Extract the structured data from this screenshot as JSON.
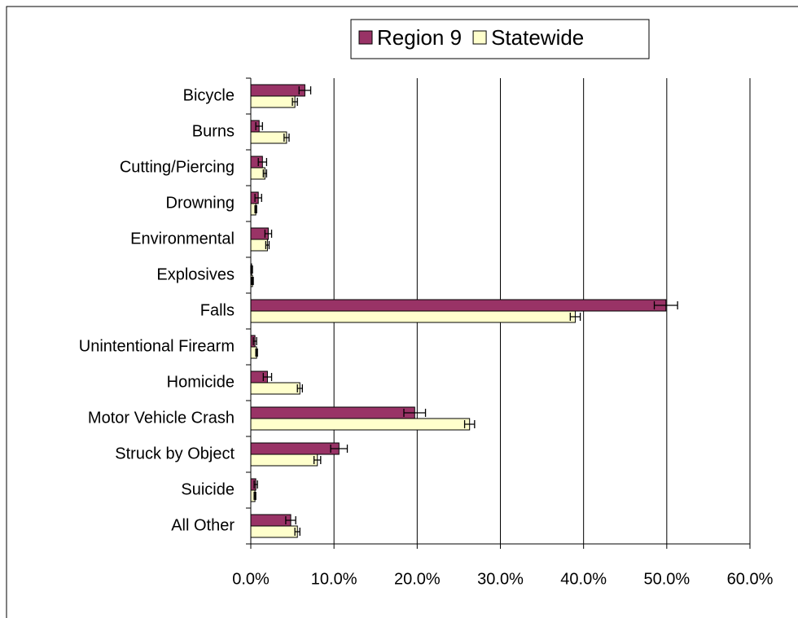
{
  "chart_data": {
    "type": "bar",
    "orientation": "horizontal",
    "categories": [
      "Bicycle",
      "Burns",
      "Cutting/Piercing",
      "Drowning",
      "Environmental",
      "Explosives",
      "Falls",
      "Unintentional Firearm",
      "Homicide",
      "Motor Vehicle Crash",
      "Struck by Object",
      "Suicide",
      "All Other"
    ],
    "series": [
      {
        "name": "Region 9",
        "color": "#993366",
        "values": [
          6.5,
          1.0,
          1.4,
          0.9,
          2.1,
          0.1,
          49.9,
          0.5,
          2.0,
          19.7,
          10.6,
          0.6,
          4.8
        ],
        "errors": [
          0.7,
          0.4,
          0.5,
          0.4,
          0.4,
          0.1,
          1.4,
          0.2,
          0.5,
          1.3,
          1.0,
          0.2,
          0.6
        ]
      },
      {
        "name": "Statewide",
        "color": "#ffffcc",
        "values": [
          5.3,
          4.3,
          1.7,
          0.6,
          2.0,
          0.2,
          39.0,
          0.7,
          5.9,
          26.3,
          8.0,
          0.5,
          5.6
        ],
        "errors": [
          0.3,
          0.3,
          0.2,
          0.1,
          0.2,
          0.1,
          0.6,
          0.1,
          0.3,
          0.6,
          0.4,
          0.1,
          0.3
        ]
      }
    ],
    "xlim": [
      0,
      60
    ],
    "xticks": [
      {
        "value": 0,
        "label": "0.0%"
      },
      {
        "value": 10,
        "label": "10.0%"
      },
      {
        "value": 20,
        "label": "20.0%"
      },
      {
        "value": 30,
        "label": "30.0%"
      },
      {
        "value": 40,
        "label": "40.0%"
      },
      {
        "value": 50,
        "label": "50.0%"
      },
      {
        "value": 60,
        "label": "60.0%"
      }
    ],
    "grid": true,
    "legend": "top"
  }
}
